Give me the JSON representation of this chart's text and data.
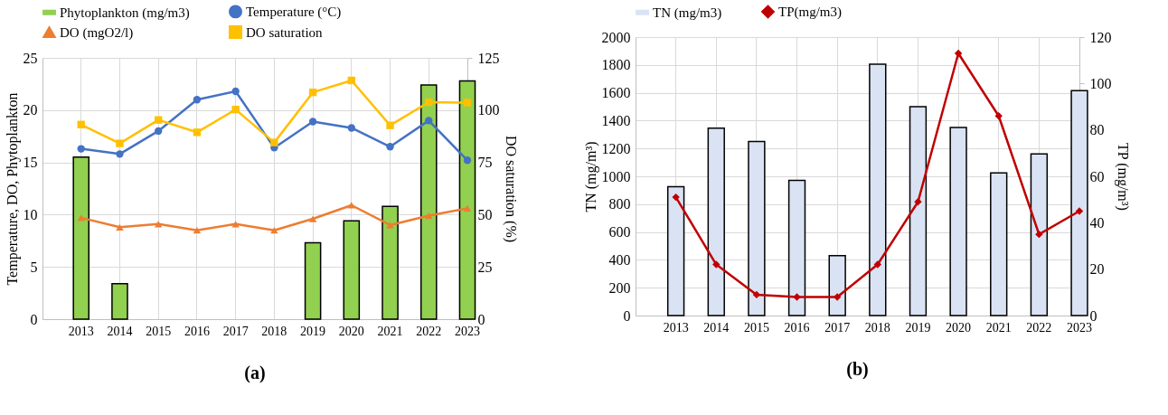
{
  "chart_data": [
    {
      "type": "bar",
      "title": "(a)",
      "categories": [
        "2013",
        "2014",
        "2015",
        "2016",
        "2017",
        "2018",
        "2019",
        "2020",
        "2021",
        "2022",
        "2023"
      ],
      "ylabel": "Temperature, DO, Phytoplankton",
      "y2label": "DO saturation (%)",
      "ylim": [
        0,
        25
      ],
      "yticks": [
        0,
        5,
        10,
        15,
        20,
        25
      ],
      "y2lim": [
        0,
        125
      ],
      "y2ticks": [
        0,
        25,
        50,
        75,
        100,
        125
      ],
      "grid": true,
      "legend": "top",
      "series": [
        {
          "name": "Phytoplankton (mg/m3)",
          "color": "#92d050",
          "values": [
            15.5,
            3.4,
            null,
            null,
            null,
            null,
            7.3,
            9.4,
            10.8,
            22.4,
            22.8
          ]
        },
        {
          "name": "Temperature (°C)",
          "type": "line",
          "marker": "circle",
          "color": "#4472c4",
          "values": [
            16.3,
            15.8,
            18.0,
            21.0,
            21.8,
            16.4,
            18.9,
            18.3,
            16.5,
            19.0,
            15.2
          ]
        },
        {
          "name": "DO (mgO2/l)",
          "type": "line",
          "marker": "triangle",
          "color": "#ed7d31",
          "values": [
            9.7,
            8.8,
            9.1,
            8.5,
            9.1,
            8.5,
            9.6,
            10.9,
            9.0,
            9.9,
            10.6
          ]
        },
        {
          "name": "DO saturation",
          "type": "line",
          "marker": "square",
          "color": "#ffc000",
          "axis": "y2",
          "values": [
            93.1,
            84.1,
            95.3,
            89.4,
            100.3,
            84.5,
            108.5,
            114.2,
            92.7,
            103.8,
            103.6
          ]
        }
      ]
    },
    {
      "type": "bar",
      "title": "(b)",
      "categories": [
        "2013",
        "2014",
        "2015",
        "2016",
        "2017",
        "2018",
        "2019",
        "2020",
        "2021",
        "2022",
        "2023"
      ],
      "ylabel": "TN (mg/m³)",
      "y2label": "TP (mg/m³)",
      "ylim": [
        0,
        2000
      ],
      "yticks": [
        0,
        200,
        400,
        600,
        800,
        1000,
        1200,
        1400,
        1600,
        1800,
        2000
      ],
      "y2lim": [
        0,
        120
      ],
      "y2ticks": [
        0,
        20,
        40,
        60,
        80,
        100,
        120
      ],
      "grid": true,
      "legend": "top",
      "series": [
        {
          "name": "TN (mg/m3)",
          "color": "#dae3f3",
          "values": [
            925,
            1345,
            1250,
            970,
            430,
            1805,
            1500,
            1350,
            1025,
            1160,
            1615
          ]
        },
        {
          "name": "TP(mg/m3)",
          "type": "line",
          "marker": "diamond",
          "color": "#c00000",
          "axis": "y2",
          "values": [
            51,
            22,
            9,
            8,
            8,
            22,
            49,
            113,
            86,
            35,
            45
          ]
        }
      ]
    }
  ]
}
